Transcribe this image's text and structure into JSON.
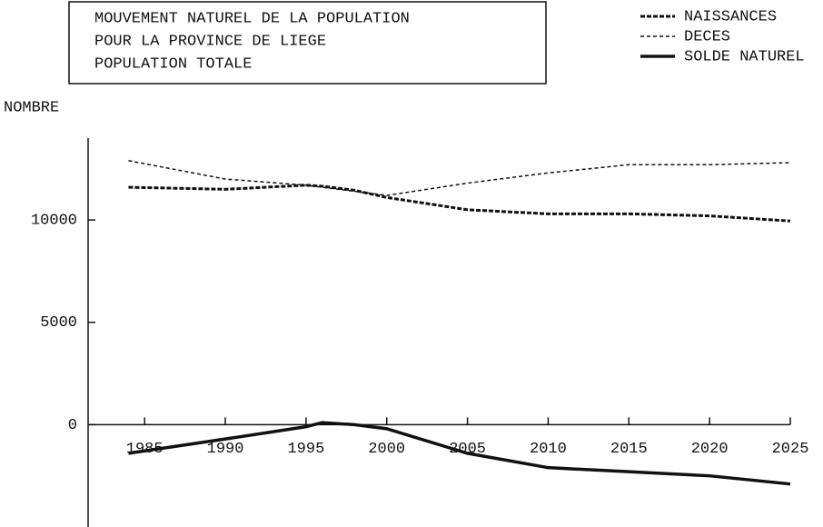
{
  "chart_data": {
    "type": "line",
    "title": [
      "MOUVEMENT NATUREL DE LA POPULATION",
      "POUR LA PROVINCE DE LIEGE",
      "POPULATION TOTALE"
    ],
    "ylabel": "NOMBRE",
    "x": [
      1984,
      1990,
      1995,
      1996,
      1998,
      2000,
      2005,
      2010,
      2015,
      2020,
      2025
    ],
    "series": [
      {
        "name": "NAISSANCES",
        "color": "#111",
        "values": [
          11600,
          11500,
          11700,
          11650,
          11450,
          11100,
          10500,
          10300,
          10300,
          10200,
          9950
        ]
      },
      {
        "name": "DECES",
        "color": "#111",
        "values": [
          12900,
          12000,
          11700,
          11600,
          11400,
          11200,
          11800,
          12300,
          12700,
          12700,
          12800
        ]
      },
      {
        "name": "SOLDE NATUREL",
        "color": "#111",
        "values": [
          -1400,
          -700,
          -100,
          100,
          0,
          -200,
          -1400,
          -2100,
          -2300,
          -2500,
          -2900
        ]
      }
    ],
    "xlim": [
      1981.5,
      2025
    ],
    "xticks": [
      1985,
      1990,
      1995,
      2000,
      2005,
      2010,
      2015,
      2020,
      2025
    ],
    "ylim": [
      -5000,
      14000
    ],
    "yticks": [
      0,
      5000,
      10000
    ],
    "legend": "top-right"
  }
}
